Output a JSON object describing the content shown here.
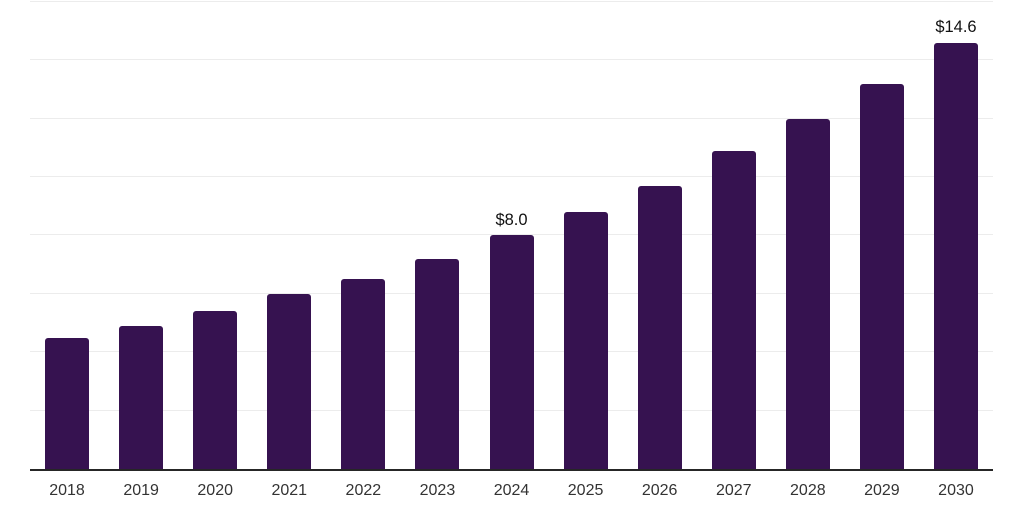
{
  "chart_data": {
    "type": "bar",
    "title": "",
    "xlabel": "",
    "ylabel": "",
    "categories": [
      "2018",
      "2019",
      "2020",
      "2021",
      "2022",
      "2023",
      "2024",
      "2025",
      "2026",
      "2027",
      "2028",
      "2029",
      "2030"
    ],
    "values": [
      4.5,
      4.9,
      5.4,
      6.0,
      6.5,
      7.2,
      8.0,
      8.8,
      9.7,
      10.9,
      12.0,
      13.2,
      14.6
    ],
    "point_labels": {
      "2024": "$8.0",
      "2030": "$14.6"
    },
    "ylim": [
      0,
      16.1
    ],
    "gridline_values": [
      2,
      4,
      6,
      8,
      10,
      12,
      14,
      16
    ],
    "grid": "horizontal-only",
    "y_axis_tick_labels_visible": false,
    "legend_position": "none",
    "colors": {
      "bar": "#361250",
      "gridline": "#ececec",
      "axis_line": "#262626",
      "tick_label": "#333333",
      "value_label": "#111111",
      "background": "#ffffff"
    }
  }
}
